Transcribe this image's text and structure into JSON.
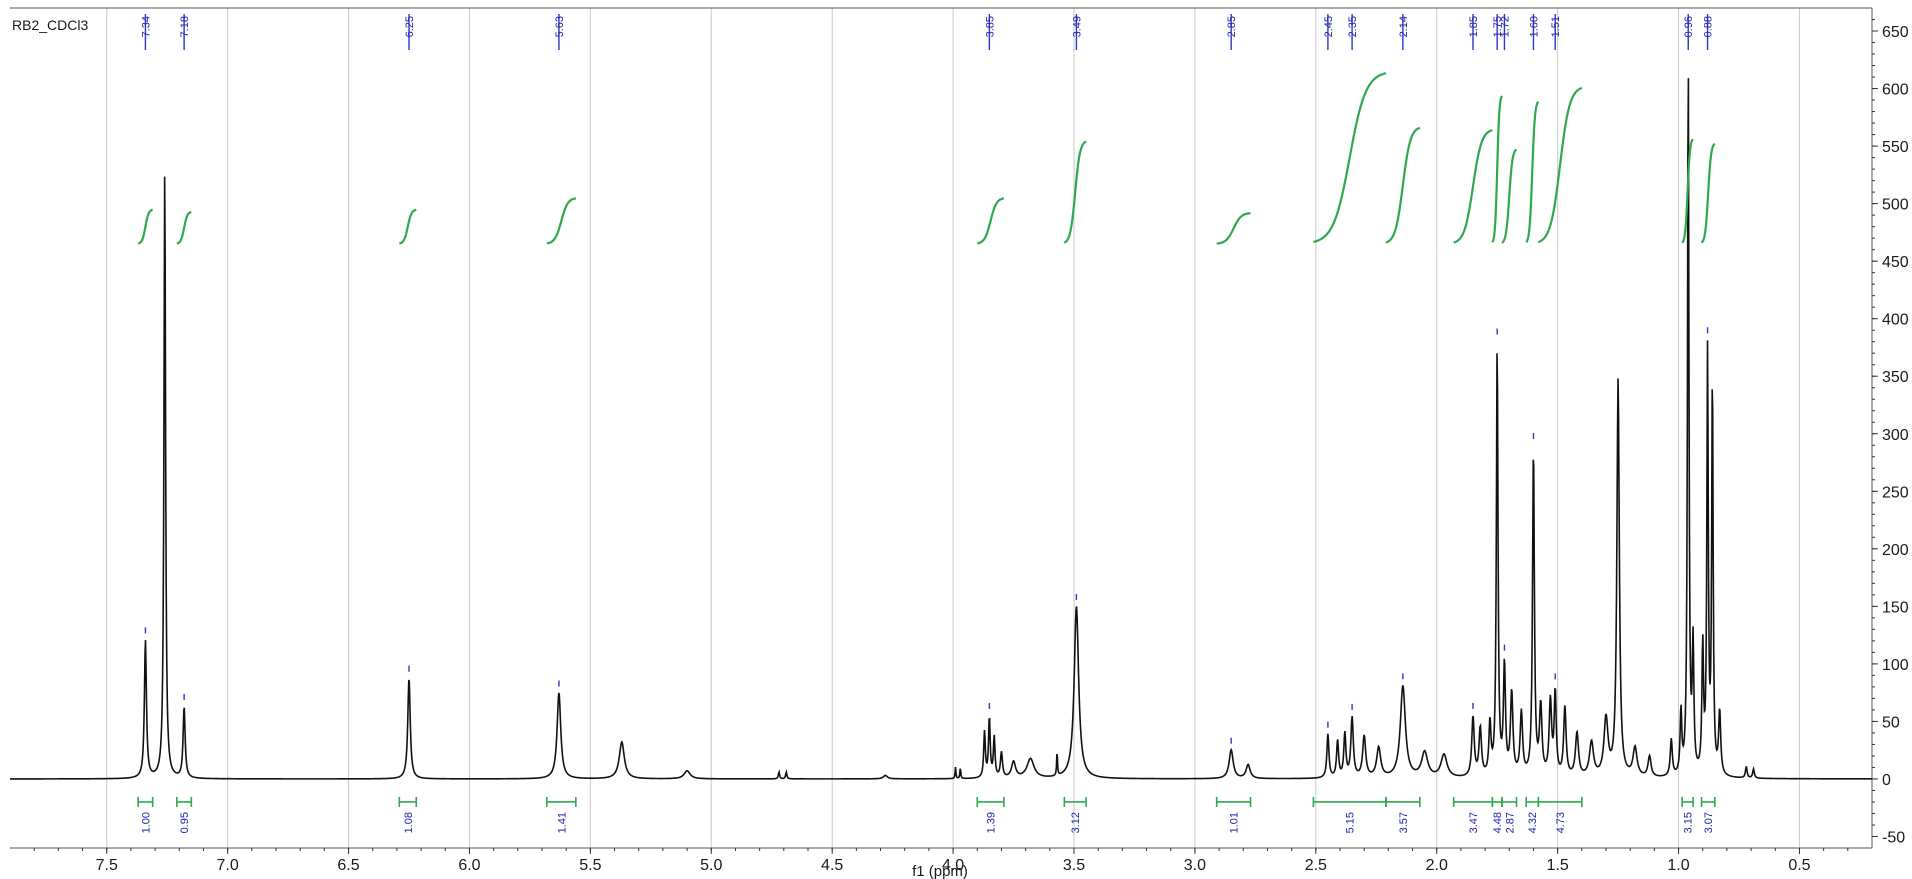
{
  "chart_data": {
    "type": "line",
    "title": "RB2_CDCl3",
    "xlabel": "f1 (ppm)",
    "ylabel": "",
    "x_reversed": true,
    "xlim": [
      7.9,
      0.2
    ],
    "ylim": [
      -60,
      670
    ],
    "grid": true,
    "x_ticks": [
      "7.5",
      "7.0",
      "6.5",
      "6.0",
      "5.5",
      "5.0",
      "4.5",
      "4.0",
      "3.5",
      "3.0",
      "2.5",
      "2.0",
      "1.5",
      "1.0",
      "0.5"
    ],
    "x_tick_values": [
      7.5,
      7.0,
      6.5,
      6.0,
      5.5,
      5.0,
      4.5,
      4.0,
      3.5,
      3.0,
      2.5,
      2.0,
      1.5,
      1.0,
      0.5
    ],
    "y_ticks": [
      "650",
      "600",
      "550",
      "500",
      "450",
      "400",
      "350",
      "300",
      "250",
      "200",
      "150",
      "100",
      "50",
      "0",
      "-50"
    ],
    "y_tick_values": [
      650,
      600,
      550,
      500,
      450,
      400,
      350,
      300,
      250,
      200,
      150,
      100,
      50,
      0,
      -50
    ],
    "peak_labels": [
      {
        "ppm": 7.34,
        "label": "7.34"
      },
      {
        "ppm": 7.18,
        "label": "7.18"
      },
      {
        "ppm": 6.25,
        "label": "6.25"
      },
      {
        "ppm": 5.63,
        "label": "5.63"
      },
      {
        "ppm": 3.85,
        "label": "3.85"
      },
      {
        "ppm": 3.49,
        "label": "3.49"
      },
      {
        "ppm": 2.85,
        "label": "2.85"
      },
      {
        "ppm": 2.45,
        "label": "2.45"
      },
      {
        "ppm": 2.35,
        "label": "2.35"
      },
      {
        "ppm": 2.14,
        "label": "2.14"
      },
      {
        "ppm": 1.85,
        "label": "1.85"
      },
      {
        "ppm": 1.75,
        "label": "1.75"
      },
      {
        "ppm": 1.72,
        "label": "1.72"
      },
      {
        "ppm": 1.6,
        "label": "1.60"
      },
      {
        "ppm": 1.51,
        "label": "1.51"
      },
      {
        "ppm": 0.96,
        "label": "0.96"
      },
      {
        "ppm": 0.88,
        "label": "0.88"
      }
    ],
    "peaks": [
      {
        "ppm": 7.34,
        "height": 120,
        "width": 0.01
      },
      {
        "ppm": 7.26,
        "height": 530,
        "width": 0.008
      },
      {
        "ppm": 7.18,
        "height": 62,
        "width": 0.01
      },
      {
        "ppm": 6.25,
        "height": 88,
        "width": 0.012
      },
      {
        "ppm": 5.63,
        "height": 75,
        "width": 0.018
      },
      {
        "ppm": 5.37,
        "height": 32,
        "width": 0.025
      },
      {
        "ppm": 5.1,
        "height": 7,
        "width": 0.03
      },
      {
        "ppm": 4.72,
        "height": 6,
        "width": 0.006
      },
      {
        "ppm": 4.69,
        "height": 6,
        "width": 0.006
      },
      {
        "ppm": 4.28,
        "height": 3,
        "width": 0.02
      },
      {
        "ppm": 3.99,
        "height": 10,
        "width": 0.004
      },
      {
        "ppm": 3.97,
        "height": 10,
        "width": 0.004
      },
      {
        "ppm": 3.87,
        "height": 40,
        "width": 0.008
      },
      {
        "ppm": 3.85,
        "height": 52,
        "width": 0.008
      },
      {
        "ppm": 3.83,
        "height": 35,
        "width": 0.008
      },
      {
        "ppm": 3.8,
        "height": 22,
        "width": 0.01
      },
      {
        "ppm": 3.75,
        "height": 14,
        "width": 0.02
      },
      {
        "ppm": 3.68,
        "height": 17,
        "width": 0.035
      },
      {
        "ppm": 3.57,
        "height": 22,
        "width": 0.004
      },
      {
        "ppm": 3.49,
        "height": 150,
        "width": 0.022
      },
      {
        "ppm": 2.85,
        "height": 25,
        "width": 0.02
      },
      {
        "ppm": 2.78,
        "height": 12,
        "width": 0.02
      },
      {
        "ppm": 2.45,
        "height": 38,
        "width": 0.01
      },
      {
        "ppm": 2.41,
        "height": 32,
        "width": 0.01
      },
      {
        "ppm": 2.38,
        "height": 38,
        "width": 0.01
      },
      {
        "ppm": 2.35,
        "height": 52,
        "width": 0.012
      },
      {
        "ppm": 2.3,
        "height": 36,
        "width": 0.015
      },
      {
        "ppm": 2.24,
        "height": 26,
        "width": 0.02
      },
      {
        "ppm": 2.14,
        "height": 80,
        "width": 0.025
      },
      {
        "ppm": 2.05,
        "height": 22,
        "width": 0.03
      },
      {
        "ppm": 1.97,
        "height": 20,
        "width": 0.03
      },
      {
        "ppm": 1.85,
        "height": 52,
        "width": 0.012
      },
      {
        "ppm": 1.82,
        "height": 42,
        "width": 0.012
      },
      {
        "ppm": 1.78,
        "height": 45,
        "width": 0.01
      },
      {
        "ppm": 1.75,
        "height": 375,
        "width": 0.008
      },
      {
        "ppm": 1.72,
        "height": 95,
        "width": 0.01
      },
      {
        "ppm": 1.69,
        "height": 72,
        "width": 0.012
      },
      {
        "ppm": 1.65,
        "height": 55,
        "width": 0.012
      },
      {
        "ppm": 1.6,
        "height": 285,
        "width": 0.009
      },
      {
        "ppm": 1.57,
        "height": 60,
        "width": 0.012
      },
      {
        "ppm": 1.53,
        "height": 65,
        "width": 0.012
      },
      {
        "ppm": 1.51,
        "height": 72,
        "width": 0.01
      },
      {
        "ppm": 1.47,
        "height": 60,
        "width": 0.012
      },
      {
        "ppm": 1.42,
        "height": 38,
        "width": 0.015
      },
      {
        "ppm": 1.36,
        "height": 30,
        "width": 0.02
      },
      {
        "ppm": 1.3,
        "height": 50,
        "width": 0.02
      },
      {
        "ppm": 1.25,
        "height": 345,
        "width": 0.012
      },
      {
        "ppm": 1.18,
        "height": 25,
        "width": 0.02
      },
      {
        "ppm": 1.12,
        "height": 18,
        "width": 0.015
      },
      {
        "ppm": 1.03,
        "height": 32,
        "width": 0.01
      },
      {
        "ppm": 0.99,
        "height": 55,
        "width": 0.008
      },
      {
        "ppm": 0.96,
        "height": 625,
        "width": 0.007
      },
      {
        "ppm": 0.94,
        "height": 110,
        "width": 0.008
      },
      {
        "ppm": 0.9,
        "height": 110,
        "width": 0.008
      },
      {
        "ppm": 0.88,
        "height": 365,
        "width": 0.007
      },
      {
        "ppm": 0.86,
        "height": 345,
        "width": 0.007
      },
      {
        "ppm": 0.83,
        "height": 55,
        "width": 0.01
      },
      {
        "ppm": 0.72,
        "height": 10,
        "width": 0.008
      },
      {
        "ppm": 0.69,
        "height": 8,
        "width": 0.008
      }
    ],
    "integrals": [
      {
        "from": 7.37,
        "to": 7.31,
        "value": "1.00",
        "curve_low": 465,
        "curve_high": 495
      },
      {
        "from": 7.21,
        "to": 7.15,
        "value": "0.95",
        "curve_low": 465,
        "curve_high": 493
      },
      {
        "from": 6.29,
        "to": 6.22,
        "value": "1.08",
        "curve_low": 465,
        "curve_high": 495
      },
      {
        "from": 5.68,
        "to": 5.56,
        "value": "1.41",
        "curve_low": 465,
        "curve_high": 505
      },
      {
        "from": 3.9,
        "to": 3.79,
        "value": "1.39",
        "curve_low": 465,
        "curve_high": 505
      },
      {
        "from": 3.54,
        "to": 3.45,
        "value": "3.12",
        "curve_low": 465,
        "curve_high": 555
      },
      {
        "from": 2.91,
        "to": 2.77,
        "value": "1.01",
        "curve_low": 465,
        "curve_high": 492
      },
      {
        "from": 2.51,
        "to": 2.21,
        "value": "5.15",
        "curve_low": 465,
        "curve_high": 615
      },
      {
        "from": 2.21,
        "to": 2.07,
        "value": "3.57",
        "curve_low": 465,
        "curve_high": 567
      },
      {
        "from": 1.93,
        "to": 1.77,
        "value": "3.47",
        "curve_low": 465,
        "curve_high": 565
      },
      {
        "from": 1.77,
        "to": 1.73,
        "value": "4.48",
        "curve_low": 465,
        "curve_high": 595
      },
      {
        "from": 1.73,
        "to": 1.67,
        "value": "2.87",
        "curve_low": 465,
        "curve_high": 548
      },
      {
        "from": 1.63,
        "to": 1.58,
        "value": "4.32",
        "curve_low": 465,
        "curve_high": 590
      },
      {
        "from": 1.58,
        "to": 1.4,
        "value": "4.73",
        "curve_low": 465,
        "curve_high": 602
      },
      {
        "from": 0.985,
        "to": 0.94,
        "value": "3.15",
        "curve_low": 465,
        "curve_high": 557
      },
      {
        "from": 0.905,
        "to": 0.85,
        "value": "3.07",
        "curve_low": 465,
        "curve_high": 553
      }
    ]
  },
  "colors": {
    "spectrum": "#111111",
    "integral": "#2fa84f",
    "label": "#2222aa",
    "grid": "#c9c9c9"
  }
}
